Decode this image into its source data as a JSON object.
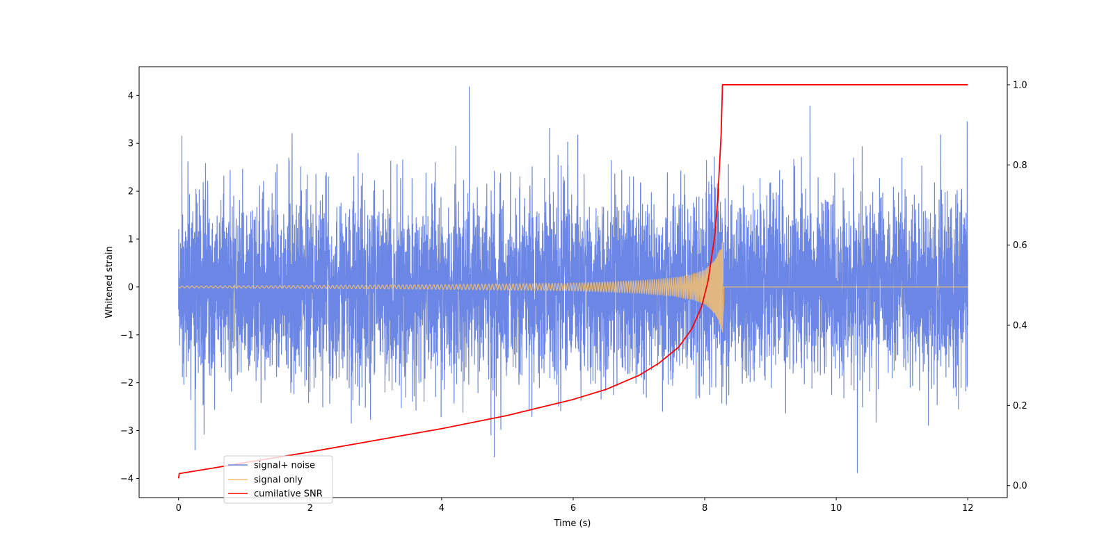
{
  "chart_data": {
    "type": "line",
    "title": "",
    "xlabel": "Time (s)",
    "ylabel": "Whitened strain",
    "y2label": "",
    "xlim": [
      -0.6,
      12.6
    ],
    "ylim": [
      -4.4,
      4.6
    ],
    "y2lim": [
      -0.03,
      1.045
    ],
    "x_ticks": [
      0,
      2,
      4,
      6,
      8,
      10,
      12
    ],
    "y_ticks": [
      -4,
      -3,
      -2,
      -1,
      0,
      1,
      2,
      3,
      4
    ],
    "y2_ticks": [
      0.0,
      0.2,
      0.4,
      0.6,
      0.8,
      1.0
    ],
    "x_tick_labels": [
      "0",
      "2",
      "4",
      "6",
      "8",
      "10",
      "12"
    ],
    "y_tick_labels": [
      "−4",
      "−3",
      "−2",
      "−1",
      "0",
      "1",
      "2",
      "3",
      "4"
    ],
    "y2_tick_labels": [
      "0.0",
      "0.2",
      "0.4",
      "0.6",
      "0.8",
      "1.0"
    ],
    "grid": false,
    "legend_position": "lower-left",
    "series": [
      {
        "name": "signal+ noise",
        "color": "#6b86e4",
        "axis": "left",
        "x_range": [
          0,
          12
        ],
        "description_values": {
          "approx_std": 1.0,
          "max": 4.18,
          "min": -3.88,
          "notable_peaks": [
            [
              0.05,
              3.15
            ],
            [
              0.25,
              -3.4
            ],
            [
              4.42,
              4.18
            ],
            [
              4.8,
              -3.55
            ],
            [
              10.32,
              -3.88
            ],
            [
              9.6,
              3.78
            ],
            [
              11.99,
              3.45
            ]
          ]
        }
      },
      {
        "name": "signal only",
        "color": "#f5bf6e",
        "axis": "left",
        "x_range": [
          0,
          12
        ],
        "merger_time": 8.27,
        "peak_amplitude": 0.95,
        "envelope": [
          [
            0.0,
            0.02
          ],
          [
            2.0,
            0.03
          ],
          [
            4.0,
            0.05
          ],
          [
            6.0,
            0.08
          ],
          [
            7.0,
            0.13
          ],
          [
            7.5,
            0.18
          ],
          [
            7.8,
            0.26
          ],
          [
            8.0,
            0.36
          ],
          [
            8.15,
            0.55
          ],
          [
            8.22,
            0.75
          ],
          [
            8.27,
            0.95
          ],
          [
            8.3,
            0.0
          ],
          [
            12.0,
            0.0
          ]
        ]
      },
      {
        "name": "cumilative SNR",
        "color": "#ff0000",
        "axis": "right",
        "x": [
          0.0,
          0.01,
          0.5,
          1.0,
          2.0,
          3.0,
          4.0,
          5.0,
          6.0,
          6.5,
          7.0,
          7.3,
          7.6,
          7.8,
          7.95,
          8.05,
          8.15,
          8.2,
          8.25,
          8.27,
          8.3,
          9.0,
          10.0,
          11.0,
          12.0
        ],
        "values": [
          0.018,
          0.03,
          0.043,
          0.057,
          0.084,
          0.113,
          0.142,
          0.175,
          0.215,
          0.24,
          0.275,
          0.305,
          0.345,
          0.39,
          0.445,
          0.51,
          0.62,
          0.72,
          0.88,
          1.0,
          1.0,
          1.0,
          1.0,
          1.0,
          1.0
        ]
      }
    ]
  }
}
